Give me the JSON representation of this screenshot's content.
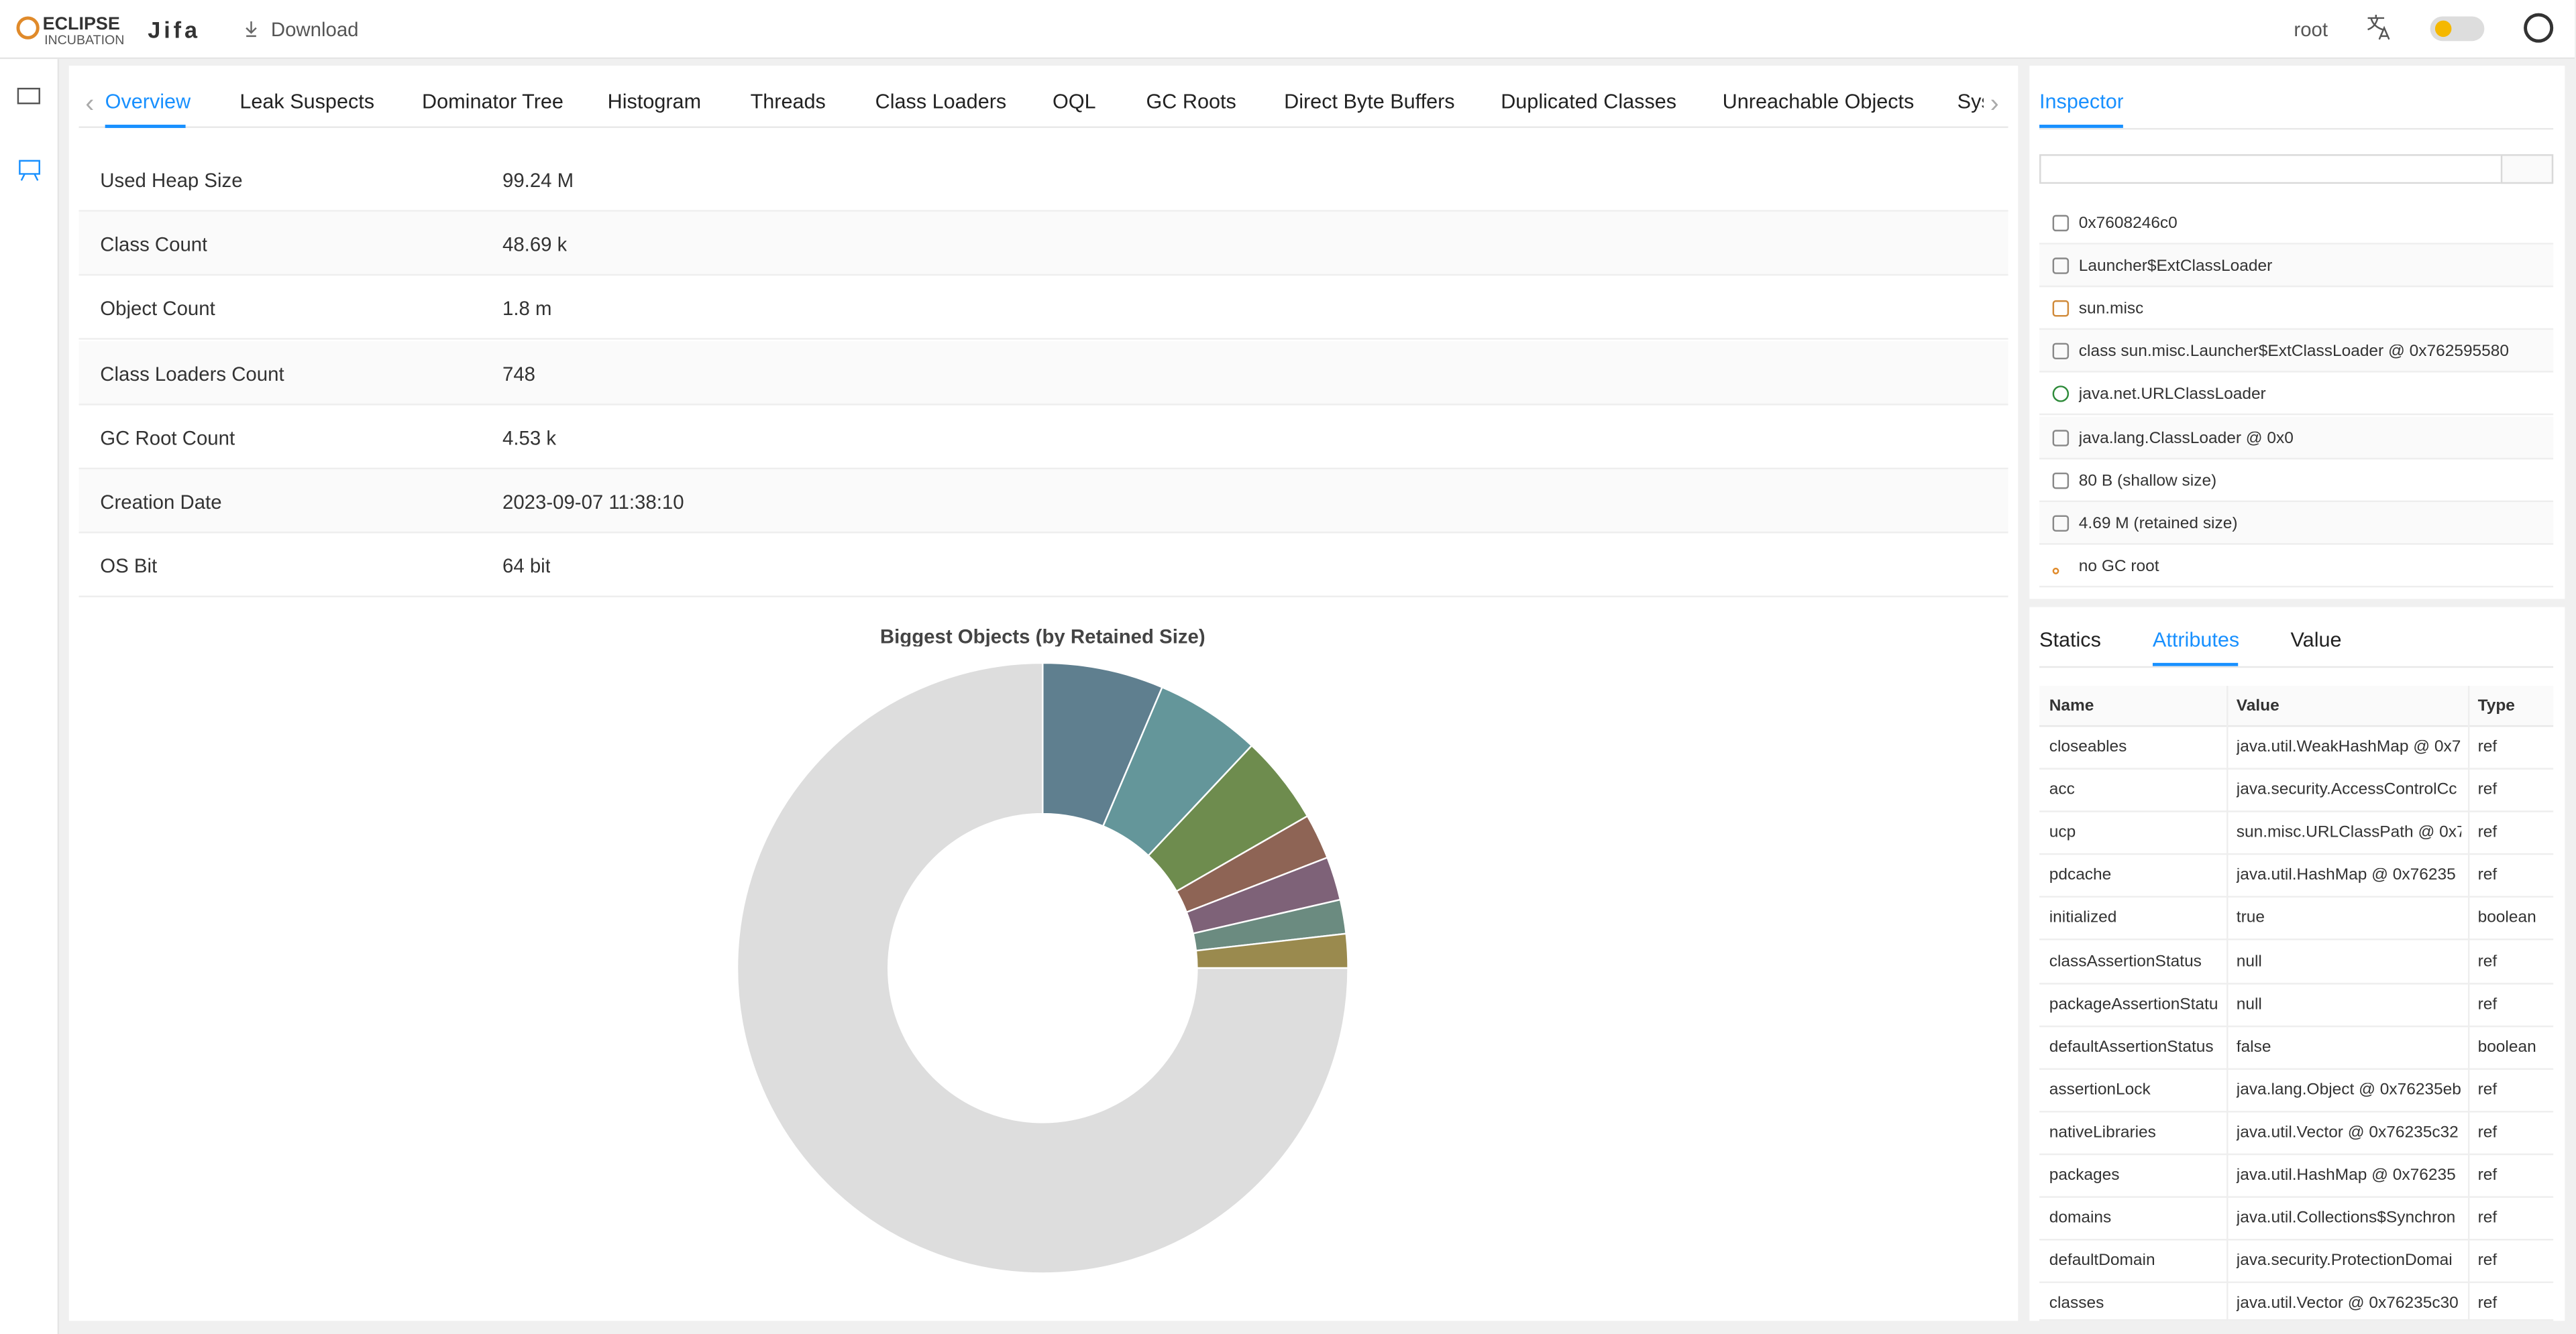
{
  "header": {
    "logo_top": "ECLIPSE",
    "logo_bottom": "INCUBATION",
    "app": "Jifa",
    "download": "Download",
    "user": "root"
  },
  "tabs": [
    "Overview",
    "Leak Suspects",
    "Dominator Tree",
    "Histogram",
    "Threads",
    "Class Loaders",
    "OQL",
    "GC Roots",
    "Direct Byte Buffers",
    "Duplicated Classes",
    "Unreachable Objects",
    "Sys"
  ],
  "overview": {
    "rows": [
      [
        "Used Heap Size",
        "99.24 M"
      ],
      [
        "Class Count",
        "48.69 k"
      ],
      [
        "Object Count",
        "1.8 m"
      ],
      [
        "Class Loaders Count",
        "748"
      ],
      [
        "GC Root Count",
        "4.53 k"
      ],
      [
        "Creation Date",
        "2023-09-07 11:38:10"
      ],
      [
        "OS Bit",
        "64 bit"
      ]
    ]
  },
  "chart_data": {
    "type": "donut",
    "title": "Biggest Objects (by Retained Size)",
    "categories": [
      null,
      null,
      null,
      null,
      null,
      null,
      null,
      null
    ],
    "values": [
      6.4,
      5.6,
      4.7,
      2.4,
      2.3,
      1.8,
      1.8,
      75.0
    ],
    "colors": [
      "#5f7f8f",
      "#64969a",
      "#6e8c4e",
      "#8e6455",
      "#7e6278",
      "#6b8b80",
      "#9a8a4e",
      "#dddddd"
    ]
  },
  "inspector": {
    "title": "Inspector",
    "items": [
      "0x7608246c0",
      "Launcher$ExtClassLoader",
      "sun.misc",
      "class sun.misc.Launcher$ExtClassLoader @ 0x762595580",
      "java.net.URLClassLoader",
      "java.lang.ClassLoader @ 0x0",
      "80 B (shallow size)",
      "4.69 M (retained size)",
      "no GC root"
    ]
  },
  "details": {
    "tabs": [
      "Statics",
      "Attributes",
      "Value"
    ],
    "columns": [
      "Name",
      "Value",
      "Type"
    ],
    "rows": [
      [
        "closeables",
        "java.util.WeakHashMap @ 0x7",
        "ref"
      ],
      [
        "acc",
        "java.security.AccessControlCc",
        "ref"
      ],
      [
        "ucp",
        "sun.misc.URLClassPath @ 0x7",
        "ref"
      ],
      [
        "pdcache",
        "java.util.HashMap @ 0x76235",
        "ref"
      ],
      [
        "initialized",
        "true",
        "boolean"
      ],
      [
        "classAssertionStatus",
        "null",
        "ref"
      ],
      [
        "packageAssertionStatu",
        "null",
        "ref"
      ],
      [
        "defaultAssertionStatus",
        "false",
        "boolean"
      ],
      [
        "assertionLock",
        "java.lang.Object @ 0x76235eb",
        "ref"
      ],
      [
        "nativeLibraries",
        "java.util.Vector @ 0x76235c32",
        "ref"
      ],
      [
        "packages",
        "java.util.HashMap @ 0x76235",
        "ref"
      ],
      [
        "domains",
        "java.util.Collections$Synchron",
        "ref"
      ],
      [
        "defaultDomain",
        "java.security.ProtectionDomai",
        "ref"
      ],
      [
        "classes",
        "java.util.Vector @ 0x76235c30",
        "ref"
      ]
    ]
  }
}
